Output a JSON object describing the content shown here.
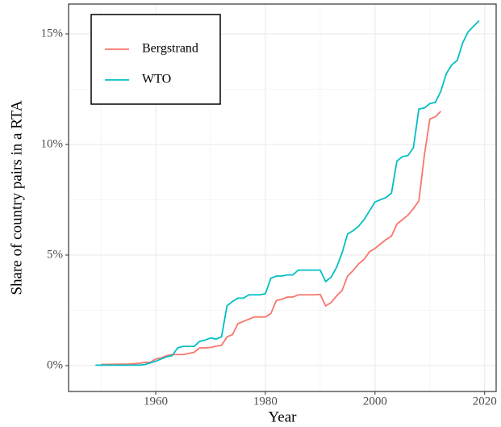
{
  "chart_data": {
    "type": "line",
    "x_label": "Year",
    "y_label": "Share of country pairs in a RTA",
    "xlim": [
      1944.1,
      2022.1
    ],
    "ylim": [
      -1.17,
      16.35
    ],
    "xticks": [
      1960,
      1980,
      2000,
      2020
    ],
    "minor_xticks": [
      1950,
      1970,
      1990,
      2010
    ],
    "yticks": [
      {
        "value": 0,
        "label": "0%"
      },
      {
        "value": 5,
        "label": "5%"
      },
      {
        "value": 10,
        "label": "10%"
      },
      {
        "value": 15,
        "label": "15%"
      }
    ],
    "minor_yticks": [
      2.5,
      7.5,
      12.5
    ],
    "grid": true,
    "legend_position": "top-left",
    "series": [
      {
        "name": "Bergstrand",
        "color": "#f8766d",
        "x": [
          1950,
          1955,
          1957,
          1958,
          1959,
          1960,
          1961,
          1962,
          1963,
          1964,
          1965,
          1966,
          1967,
          1968,
          1969,
          1970,
          1971,
          1972,
          1973,
          1974,
          1975,
          1976,
          1977,
          1978,
          1979,
          1980,
          1981,
          1982,
          1983,
          1984,
          1985,
          1986,
          1987,
          1988,
          1989,
          1990,
          1991,
          1992,
          1993,
          1994,
          1995,
          1996,
          1997,
          1998,
          1999,
          2000,
          2001,
          2002,
          2003,
          2004,
          2005,
          2006,
          2007,
          2008,
          2009,
          2010,
          2011,
          2012
        ],
        "values": [
          0.05,
          0.07,
          0.1,
          0.15,
          0.15,
          0.3,
          0.35,
          0.45,
          0.5,
          0.5,
          0.5,
          0.55,
          0.6,
          0.8,
          0.8,
          0.82,
          0.88,
          0.92,
          1.3,
          1.4,
          1.9,
          2.0,
          2.1,
          2.2,
          2.2,
          2.2,
          2.35,
          2.95,
          3.0,
          3.1,
          3.1,
          3.2,
          3.2,
          3.2,
          3.2,
          3.22,
          2.7,
          2.85,
          3.15,
          3.4,
          4.05,
          4.3,
          4.6,
          4.8,
          5.15,
          5.3,
          5.5,
          5.7,
          5.85,
          6.4,
          6.6,
          6.8,
          7.1,
          7.45,
          9.5,
          11.15,
          11.25,
          11.5
        ]
      },
      {
        "name": "WTO",
        "color": "#00bfc4",
        "x": [
          1949,
          1957,
          1958,
          1959,
          1960,
          1961,
          1962,
          1963,
          1964,
          1965,
          1966,
          1967,
          1968,
          1969,
          1970,
          1971,
          1972,
          1973,
          1974,
          1975,
          1976,
          1977,
          1978,
          1979,
          1980,
          1981,
          1982,
          1983,
          1984,
          1985,
          1986,
          1987,
          1988,
          1989,
          1990,
          1991,
          1992,
          1993,
          1994,
          1995,
          1996,
          1997,
          1998,
          1999,
          2000,
          2001,
          2002,
          2003,
          2004,
          2005,
          2006,
          2007,
          2008,
          2009,
          2010,
          2011,
          2012,
          2013,
          2014,
          2015,
          2016,
          2017,
          2018,
          2019
        ],
        "values": [
          0.02,
          0.02,
          0.05,
          0.12,
          0.2,
          0.3,
          0.4,
          0.45,
          0.8,
          0.87,
          0.87,
          0.87,
          1.1,
          1.15,
          1.25,
          1.2,
          1.3,
          2.7,
          2.9,
          3.05,
          3.05,
          3.2,
          3.2,
          3.2,
          3.25,
          3.95,
          4.05,
          4.05,
          4.1,
          4.1,
          4.32,
          4.32,
          4.32,
          4.32,
          4.32,
          3.8,
          4.0,
          4.45,
          5.1,
          5.95,
          6.1,
          6.3,
          6.6,
          7.0,
          7.4,
          7.5,
          7.6,
          7.8,
          9.25,
          9.45,
          9.5,
          9.85,
          11.6,
          11.65,
          11.85,
          11.9,
          12.4,
          13.2,
          13.6,
          13.8,
          14.6,
          15.1,
          15.35,
          15.6
        ]
      }
    ]
  }
}
